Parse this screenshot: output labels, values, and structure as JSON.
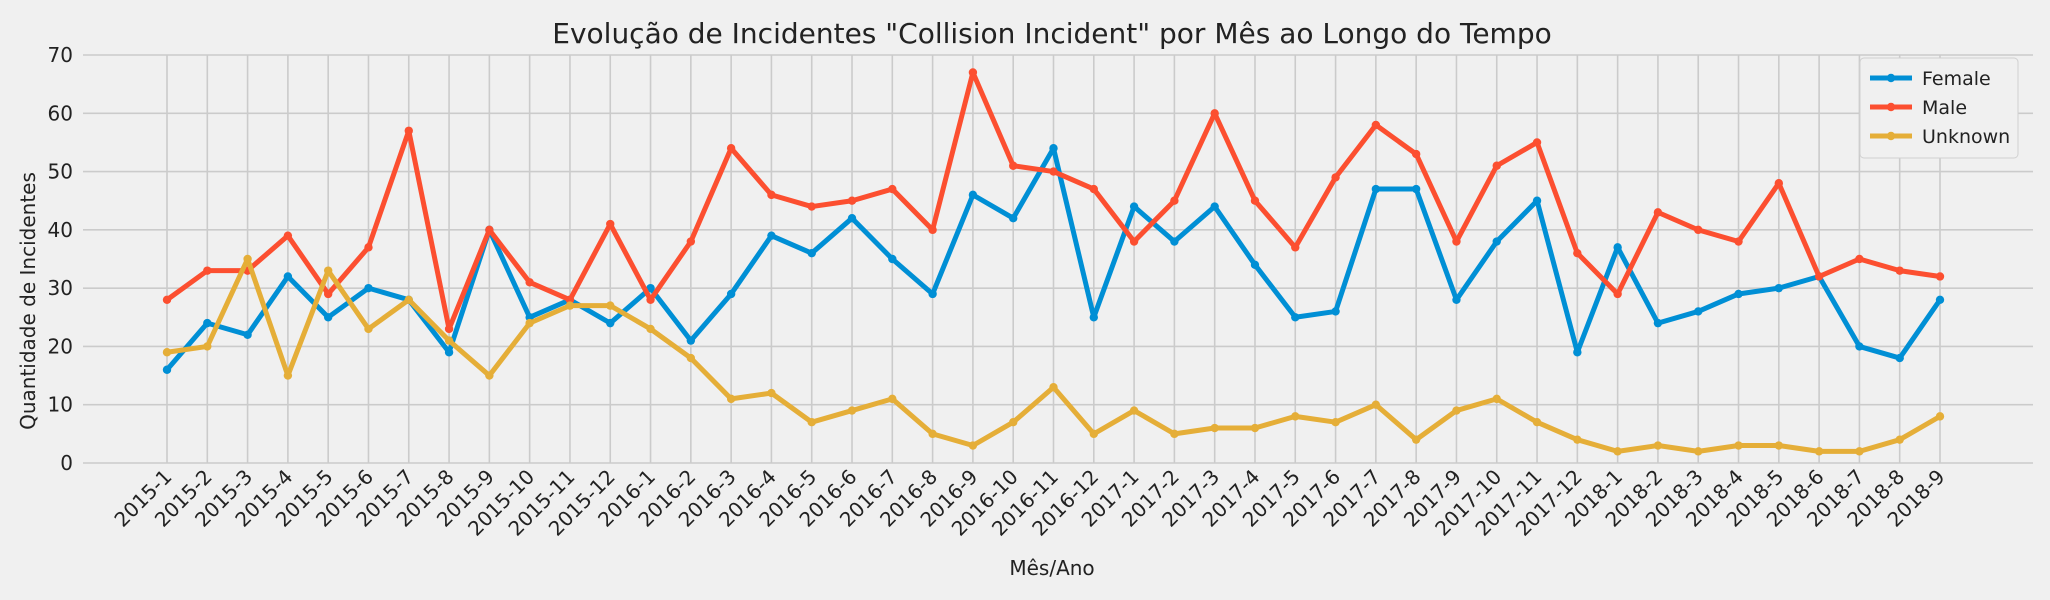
{
  "chart_data": {
    "type": "line",
    "title": "Evolução de Incidentes \"Collision Incident\" por Mês ao Longo do Tempo",
    "xlabel": "Mês/Ano",
    "ylabel": "Quantidade de Incidentes",
    "ylim": [
      0,
      70
    ],
    "yticks": [
      "0",
      "10",
      "20",
      "30",
      "40",
      "50",
      "60",
      "70"
    ],
    "grid": true,
    "legend_position": "top-right",
    "categories": [
      "2015-1",
      "2015-2",
      "2015-3",
      "2015-4",
      "2015-5",
      "2015-6",
      "2015-7",
      "2015-8",
      "2015-9",
      "2015-10",
      "2015-11",
      "2015-12",
      "2016-1",
      "2016-2",
      "2016-3",
      "2016-4",
      "2016-5",
      "2016-6",
      "2016-7",
      "2016-8",
      "2016-9",
      "2016-10",
      "2016-11",
      "2016-12",
      "2017-1",
      "2017-2",
      "2017-3",
      "2017-4",
      "2017-5",
      "2017-6",
      "2017-7",
      "2017-8",
      "2017-9",
      "2017-10",
      "2017-11",
      "2017-12",
      "2018-1",
      "2018-2",
      "2018-3",
      "2018-4",
      "2018-5",
      "2018-6",
      "2018-7",
      "2018-8",
      "2018-9"
    ],
    "series": [
      {
        "name": "Female",
        "color": "#008fd5",
        "values": [
          16,
          24,
          22,
          32,
          25,
          30,
          28,
          19,
          40,
          25,
          28,
          24,
          30,
          21,
          29,
          39,
          36,
          42,
          35,
          29,
          46,
          42,
          54,
          25,
          44,
          38,
          44,
          34,
          25,
          26,
          47,
          47,
          28,
          38,
          45,
          19,
          37,
          24,
          26,
          29,
          30,
          32,
          20,
          18,
          28
        ]
      },
      {
        "name": "Male",
        "color": "#fc4f30",
        "values": [
          28,
          33,
          33,
          39,
          29,
          37,
          57,
          23,
          40,
          31,
          28,
          41,
          28,
          38,
          54,
          46,
          44,
          45,
          47,
          40,
          67,
          51,
          50,
          47,
          38,
          45,
          60,
          45,
          37,
          49,
          58,
          53,
          38,
          51,
          55,
          36,
          29,
          43,
          40,
          38,
          48,
          32,
          35,
          33,
          32
        ]
      },
      {
        "name": "Unknown",
        "color": "#e5ae38",
        "values": [
          19,
          20,
          35,
          15,
          33,
          23,
          28,
          21,
          15,
          24,
          27,
          27,
          23,
          18,
          11,
          12,
          7,
          9,
          11,
          5,
          3,
          7,
          13,
          5,
          9,
          5,
          6,
          6,
          8,
          7,
          10,
          4,
          9,
          11,
          7,
          4,
          2,
          3,
          2,
          3,
          3,
          2,
          2,
          4,
          8
        ]
      }
    ]
  }
}
